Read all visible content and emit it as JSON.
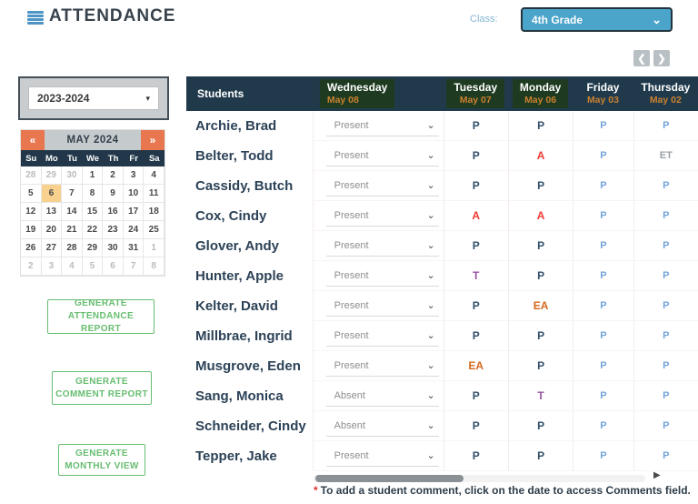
{
  "header": {
    "title": "ATTENDANCE",
    "class_label": "Class:",
    "class_selected": "4th Grade",
    "chevron": "⌄"
  },
  "pager": {
    "prev": "❮",
    "next": "❯"
  },
  "sidebar": {
    "year_selected": "2023-2024",
    "year_caret": "▾",
    "calendar": {
      "title": "MAY 2024",
      "prev": "«",
      "next": "»",
      "day_headers": [
        "Su",
        "Mo",
        "Tu",
        "We",
        "Th",
        "Fr",
        "Sa"
      ],
      "weeks": [
        [
          "28",
          "29",
          "30",
          "1",
          "2",
          "3",
          "4"
        ],
        [
          "5",
          "6",
          "7",
          "8",
          "9",
          "10",
          "11"
        ],
        [
          "12",
          "13",
          "14",
          "15",
          "16",
          "17",
          "18"
        ],
        [
          "19",
          "20",
          "21",
          "22",
          "23",
          "24",
          "25"
        ],
        [
          "26",
          "27",
          "28",
          "29",
          "30",
          "31",
          "1"
        ],
        [
          "2",
          "3",
          "4",
          "5",
          "6",
          "7",
          "8"
        ]
      ],
      "muted": [
        [
          1,
          1,
          1,
          0,
          0,
          0,
          0
        ],
        [
          0,
          0,
          0,
          0,
          0,
          0,
          0
        ],
        [
          0,
          0,
          0,
          0,
          0,
          0,
          0
        ],
        [
          0,
          0,
          0,
          0,
          0,
          0,
          0
        ],
        [
          0,
          0,
          0,
          0,
          0,
          0,
          1
        ],
        [
          1,
          1,
          1,
          1,
          1,
          1,
          1
        ]
      ],
      "selected": {
        "week": 1,
        "day": 1
      }
    },
    "buttons": [
      {
        "lines": [
          "GENERATE",
          "ATTENDANCE REPORT"
        ]
      },
      {
        "lines": [
          "GENERATE",
          "COMMENT REPORT"
        ]
      },
      {
        "lines": [
          "GENERATE",
          "MONTHLY VIEW"
        ]
      }
    ]
  },
  "table": {
    "students_header": "Students",
    "columns": [
      {
        "key": "wed",
        "day": "Wednesday",
        "date": "May 08",
        "highlight": true,
        "type": "select"
      },
      {
        "key": "tue",
        "day": "Tuesday",
        "date": "May 07",
        "highlight": true,
        "type": "value"
      },
      {
        "key": "mon",
        "day": "Monday",
        "date": "May 06",
        "highlight": true,
        "type": "value"
      },
      {
        "key": "fri",
        "day": "Friday",
        "date": "May 03",
        "highlight": false,
        "type": "value_older"
      },
      {
        "key": "thu",
        "day": "Thursday",
        "date": "May 02",
        "highlight": false,
        "type": "value_older"
      }
    ],
    "select_chevron": "⌄",
    "rows": [
      {
        "name": "Archie, Brad",
        "wed": "Present",
        "tue": "P",
        "mon": "P",
        "fri": "P",
        "thu": "P"
      },
      {
        "name": "Belter, Todd",
        "wed": "Present",
        "tue": "P",
        "mon": "A",
        "fri": "P",
        "thu": "ET"
      },
      {
        "name": "Cassidy, Butch",
        "wed": "Present",
        "tue": "P",
        "mon": "P",
        "fri": "P",
        "thu": "P"
      },
      {
        "name": "Cox, Cindy",
        "wed": "Present",
        "tue": "A",
        "mon": "A",
        "fri": "P",
        "thu": "P"
      },
      {
        "name": "Glover, Andy",
        "wed": "Present",
        "tue": "P",
        "mon": "P",
        "fri": "P",
        "thu": "P"
      },
      {
        "name": "Hunter, Apple",
        "wed": "Present",
        "tue": "T",
        "mon": "P",
        "fri": "P",
        "thu": "P"
      },
      {
        "name": "Kelter, David",
        "wed": "Present",
        "tue": "P",
        "mon": "EA",
        "fri": "P",
        "thu": "P"
      },
      {
        "name": "Millbrae, Ingrid",
        "wed": "Present",
        "tue": "P",
        "mon": "P",
        "fri": "P",
        "thu": "P"
      },
      {
        "name": "Musgrove, Eden",
        "wed": "Present",
        "tue": "EA",
        "mon": "P",
        "fri": "P",
        "thu": "P"
      },
      {
        "name": "Sang, Monica",
        "wed": "Absent",
        "tue": "P",
        "mon": "T",
        "fri": "P",
        "thu": "P"
      },
      {
        "name": "Schneider, Cindy",
        "wed": "Absent",
        "tue": "P",
        "mon": "P",
        "fri": "P",
        "thu": "P"
      },
      {
        "name": "Tepper, Jake",
        "wed": "Present",
        "tue": "P",
        "mon": "P",
        "fri": "P",
        "thu": "P"
      }
    ]
  },
  "scrollbar": {
    "arrow": "▶"
  },
  "footnote": {
    "asterisk": "*",
    "text": "To add a student comment, click on the date to access Comments field."
  },
  "colors": {
    "accent_blue": "#4BA4CA",
    "navy_header": "#203A4C",
    "green_patch": "#1E3B21",
    "date_orange": "#C9802F",
    "calendar_orange": "#E8764F",
    "calendar_selected": "#F9D18E",
    "button_green": "#67BD70",
    "status": {
      "P": "#33506B",
      "A": "#EF3B33",
      "T": "#9B56A3",
      "EA": "#D4681E",
      "P_light": "#74A4DB",
      "ET": "#9AA0A5"
    }
  }
}
